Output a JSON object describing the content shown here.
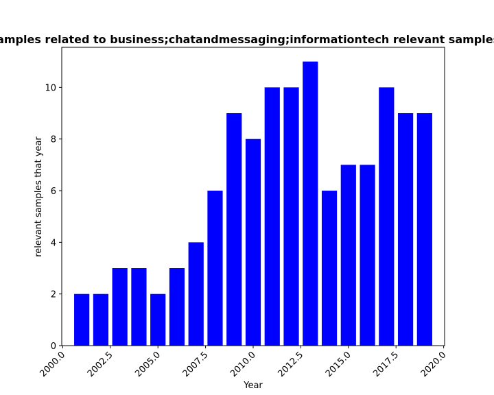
{
  "chart_data": {
    "type": "bar",
    "title": "Count of samples related to business;chatandmessaging;informationtech relevant samples that year",
    "xlabel": "Year",
    "ylabel": "relevant samples that year",
    "x": [
      2001,
      2002,
      2003,
      2004,
      2005,
      2006,
      2007,
      2008,
      2009,
      2010,
      2011,
      2012,
      2013,
      2014,
      2015,
      2016,
      2017,
      2018,
      2019
    ],
    "values": [
      2,
      2,
      3,
      3,
      2,
      3,
      4,
      6,
      9,
      8,
      10,
      10,
      11,
      6,
      7,
      7,
      10,
      9,
      9
    ],
    "xlim": [
      1999.95,
      2020.05
    ],
    "ylim": [
      0,
      11.55
    ],
    "xticks": [
      2000.0,
      2002.5,
      2005.0,
      2007.5,
      2010.0,
      2012.5,
      2015.0,
      2017.5,
      2020.0
    ],
    "xtick_labels": [
      "2000.0",
      "2002.5",
      "2005.0",
      "2007.5",
      "2010.0",
      "2012.5",
      "2015.0",
      "2017.5",
      "2020.0"
    ],
    "yticks": [
      0,
      2,
      4,
      6,
      8,
      10
    ],
    "ytick_labels": [
      "0",
      "2",
      "4",
      "6",
      "8",
      "10"
    ],
    "bar_width": 0.8,
    "bar_color": "#0000ff",
    "grid": false,
    "legend": "none"
  }
}
